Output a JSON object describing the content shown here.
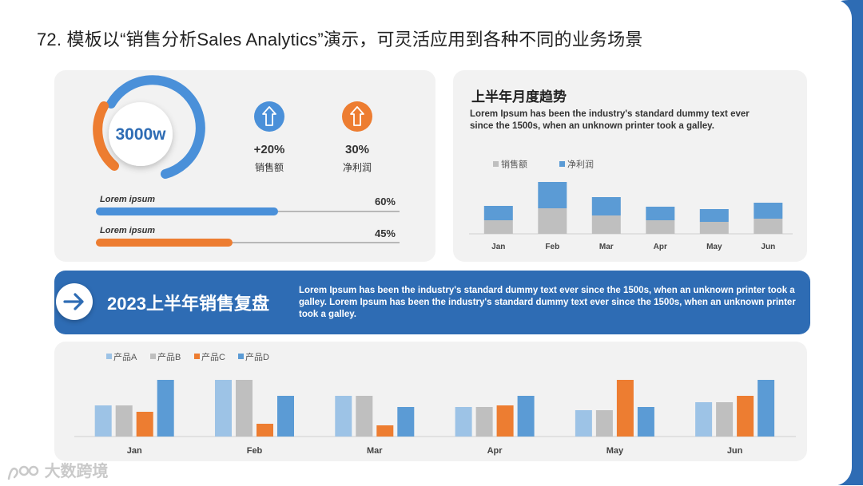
{
  "slide": {
    "title": "72. 模板以“销售分析Sales Analytics”演示，可灵活应用到各种不同的业务场景"
  },
  "kpi_panel": {
    "gauge_value": "3000w",
    "gauge_colors": {
      "primary": "#4a90d9",
      "secondary": "#ed7d31"
    },
    "stats": [
      {
        "icon": "arrow-up-icon",
        "value": "+20%",
        "label": "销售额",
        "color": "#4a90d9"
      },
      {
        "icon": "arrow-up-icon",
        "value": "30%",
        "label": "净利润",
        "color": "#ed7d31"
      }
    ],
    "progress": [
      {
        "label": "Lorem ipsum",
        "value_text": "60%",
        "value": 0.6,
        "color": "#4a90d9"
      },
      {
        "label": "Lorem ipsum",
        "value_text": "45%",
        "value": 0.45,
        "color": "#ed7d31"
      }
    ]
  },
  "trend_panel": {
    "title": "上半年月度趋势",
    "description": "Lorem Ipsum has been the industry's standard dummy text ever since the 1500s, when an unknown printer took a galley."
  },
  "banner": {
    "icon": "arrow-right-icon",
    "title": "2023上半年销售复盘",
    "text": "Lorem Ipsum has been the industry's standard dummy text ever since the 1500s, when an unknown printer took a galley. Lorem Ipsum has been the industry's standard dummy text ever since the 1500s, when an unknown printer took a galley."
  },
  "watermark": {
    "text": "大数跨境",
    "icon": "logo-icon"
  },
  "chart_data": [
    {
      "type": "bar",
      "stacked": true,
      "categories": [
        "Jan",
        "Feb",
        "Mar",
        "Apr",
        "May",
        "Jun"
      ],
      "series": [
        {
          "name": "销售额",
          "color": "#bfbfbf",
          "values": [
            17,
            32,
            23,
            17,
            15,
            19
          ]
        },
        {
          "name": "净利润",
          "color": "#5b9bd5",
          "values": [
            18,
            33,
            23,
            17,
            16,
            20
          ]
        }
      ],
      "legend": "top-left",
      "grid": false
    },
    {
      "type": "bar",
      "categories": [
        "Jan",
        "Feb",
        "Mar",
        "Apr",
        "May",
        "Jun"
      ],
      "series": [
        {
          "name": "产品A",
          "color": "#9dc3e6",
          "values": [
            39,
            71,
            51,
            37,
            33,
            43
          ]
        },
        {
          "name": "产品B",
          "color": "#bfbfbf",
          "values": [
            39,
            71,
            51,
            37,
            33,
            43
          ]
        },
        {
          "name": "产品C",
          "color": "#ed7d31",
          "values": [
            31,
            16,
            14,
            39,
            71,
            51
          ]
        },
        {
          "name": "产品D",
          "color": "#5b9bd5",
          "values": [
            71,
            51,
            37,
            51,
            37,
            71
          ]
        }
      ],
      "legend": "top-left",
      "grid": false
    }
  ]
}
